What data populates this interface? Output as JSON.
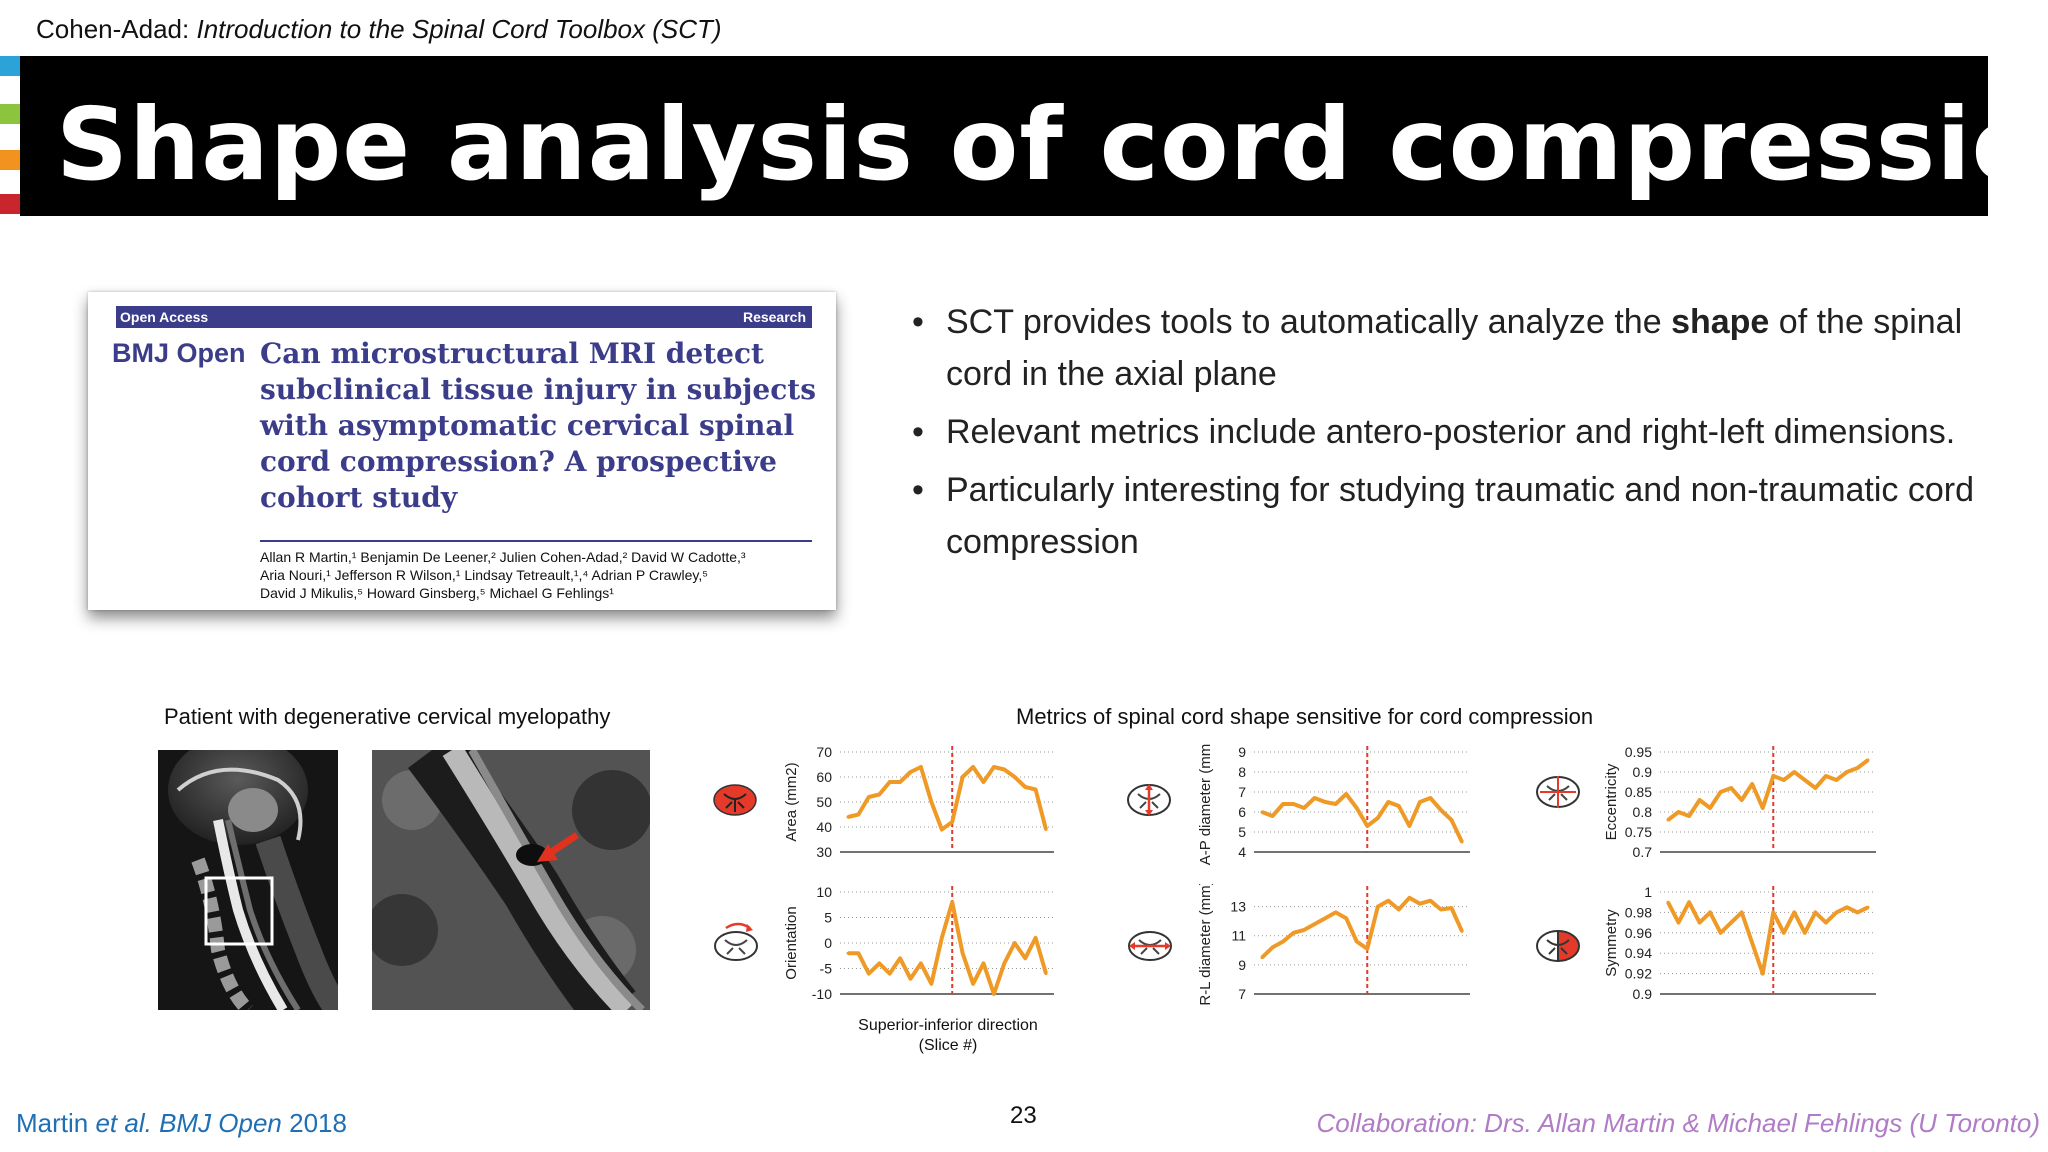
{
  "header": {
    "author": "Cohen-Adad:",
    "course": "Introduction to the Spinal Cord Toolbox (SCT)"
  },
  "colors": {
    "accents": [
      "#2ba3d8",
      "#8cc43d",
      "#f29320",
      "#c8252c"
    ],
    "journal": "#3b3c8a",
    "plot_line": "#ef9a26",
    "marker_line": "#e53a2a",
    "footer_link": "#1f6fb5",
    "footer_credit": "#b07cc6"
  },
  "title": "Shape analysis of cord compression",
  "paper": {
    "access": "Open Access",
    "type": "Research",
    "journal": "BMJ Open",
    "title": "Can microstructural MRI detect subclinical tissue injury in subjects with asymptomatic cervical spinal cord compression? A prospective cohort study",
    "authors_line1": "Allan R Martin,¹ Benjamin De Leener,² Julien Cohen-Adad,² David W Cadotte,³",
    "authors_line2": "Aria Nouri,¹ Jefferson R Wilson,¹ Lindsay Tetreault,¹,⁴ Adrian P Crawley,⁵",
    "authors_line3": "David J Mikulis,⁵ Howard Ginsberg,⁵ Michael G Fehlings¹"
  },
  "bullets": {
    "b1_pre": "SCT provides tools to automatically analyze the ",
    "b1_bold": "shape",
    "b1_post": " of the spinal cord in the axial plane",
    "b2": "Relevant metrics include antero-posterior and right-left dimensions.",
    "b3": "Particularly interesting for studying traumatic and non-traumatic cord compression"
  },
  "captions": {
    "patient": "Patient with degenerative cervical myelopathy",
    "metrics": "Metrics of spinal cord shape sensitive for cord compression",
    "xaxis_line1": "Superior-inferior direction",
    "xaxis_line2": "(Slice #)"
  },
  "chart_data": [
    {
      "type": "line",
      "ylabel": "Area (mm2)",
      "ylim": [
        30,
        70
      ],
      "yticks": [
        "70",
        "60",
        "50",
        "40",
        "30"
      ],
      "yticks_values": [
        70,
        60,
        50,
        40,
        30
      ],
      "x": [
        1,
        2,
        3,
        4,
        5,
        6,
        7,
        8,
        9,
        10,
        11,
        12,
        13,
        14,
        15,
        16,
        17,
        18,
        19,
        20
      ],
      "marker_x": 11,
      "values": [
        44,
        45,
        52,
        53,
        58,
        58,
        62,
        64,
        50,
        39,
        42,
        60,
        64,
        58,
        64,
        63,
        60,
        56,
        55,
        39
      ]
    },
    {
      "type": "line",
      "ylabel": "A-P diameter (mm)",
      "ylim": [
        4,
        9
      ],
      "yticks": [
        "9",
        "8",
        "7",
        "6",
        "5",
        "4"
      ],
      "yticks_values": [
        9,
        8,
        7,
        6,
        5,
        4
      ],
      "x": [
        1,
        2,
        3,
        4,
        5,
        6,
        7,
        8,
        9,
        10,
        11,
        12,
        13,
        14,
        15,
        16,
        17,
        18,
        19,
        20
      ],
      "marker_x": 11,
      "values": [
        6.0,
        5.8,
        6.4,
        6.4,
        6.2,
        6.7,
        6.5,
        6.4,
        6.9,
        6.2,
        5.3,
        5.7,
        6.5,
        6.3,
        5.3,
        6.5,
        6.7,
        6.1,
        5.6,
        4.5
      ]
    },
    {
      "type": "line",
      "ylabel": "Eccentricity",
      "ylim": [
        0.7,
        0.95
      ],
      "yticks": [
        "0.95",
        "0.9",
        "0.85",
        "0.8",
        "0.75",
        "0.7"
      ],
      "yticks_values": [
        0.95,
        0.9,
        0.85,
        0.8,
        0.75,
        0.7
      ],
      "x": [
        1,
        2,
        3,
        4,
        5,
        6,
        7,
        8,
        9,
        10,
        11,
        12,
        13,
        14,
        15,
        16,
        17,
        18,
        19,
        20
      ],
      "marker_x": 11,
      "values": [
        0.78,
        0.8,
        0.79,
        0.83,
        0.81,
        0.85,
        0.86,
        0.83,
        0.87,
        0.81,
        0.89,
        0.88,
        0.9,
        0.88,
        0.86,
        0.89,
        0.88,
        0.9,
        0.91,
        0.93
      ]
    },
    {
      "type": "line",
      "ylabel": "Orientation",
      "ylim": [
        -10,
        10
      ],
      "yticks": [
        "10",
        "5",
        "0",
        "-5",
        "-10"
      ],
      "yticks_values": [
        10,
        5,
        0,
        -5,
        -10
      ],
      "x": [
        1,
        2,
        3,
        4,
        5,
        6,
        7,
        8,
        9,
        10,
        11,
        12,
        13,
        14,
        15,
        16,
        17,
        18,
        19,
        20
      ],
      "marker_x": 11,
      "values": [
        -2,
        -2,
        -6,
        -4,
        -6,
        -3,
        -7,
        -4,
        -8,
        1,
        8,
        -2,
        -8,
        -4,
        -10,
        -4,
        0,
        -3,
        1,
        -6
      ]
    },
    {
      "type": "line",
      "ylabel": "R-L diameter (mm)",
      "ylim": [
        7,
        14
      ],
      "yticks": [
        "13",
        "11",
        "9",
        "7"
      ],
      "yticks_values": [
        13,
        11,
        9,
        7
      ],
      "x": [
        1,
        2,
        3,
        4,
        5,
        6,
        7,
        8,
        9,
        10,
        11,
        12,
        13,
        14,
        15,
        16,
        17,
        18,
        19,
        20
      ],
      "marker_x": 11,
      "values": [
        9.5,
        10.2,
        10.6,
        11.2,
        11.4,
        11.8,
        12.2,
        12.6,
        12.2,
        10.6,
        10.1,
        13.0,
        13.4,
        12.8,
        13.6,
        13.2,
        13.4,
        12.8,
        12.9,
        11.3
      ]
    },
    {
      "type": "line",
      "ylabel": "Symmetry",
      "ylim": [
        0.9,
        1.0
      ],
      "yticks": [
        "1",
        "0.98",
        "0.96",
        "0.94",
        "0.92",
        "0.9"
      ],
      "yticks_values": [
        1,
        0.98,
        0.96,
        0.94,
        0.92,
        0.9
      ],
      "x": [
        1,
        2,
        3,
        4,
        5,
        6,
        7,
        8,
        9,
        10,
        11,
        12,
        13,
        14,
        15,
        16,
        17,
        18,
        19,
        20
      ],
      "marker_x": 11,
      "values": [
        0.99,
        0.97,
        0.99,
        0.97,
        0.98,
        0.96,
        0.97,
        0.98,
        0.95,
        0.92,
        0.98,
        0.96,
        0.98,
        0.96,
        0.98,
        0.97,
        0.98,
        0.985,
        0.98,
        0.985
      ]
    }
  ],
  "footer": {
    "ref_author": "Martin ",
    "ref_etal": "et al.",
    "ref_journal": " BMJ Open",
    "ref_year": " 2018",
    "page": "23",
    "credit": "Collaboration: Drs. Allan Martin & Michael Fehlings (U Toronto)"
  }
}
